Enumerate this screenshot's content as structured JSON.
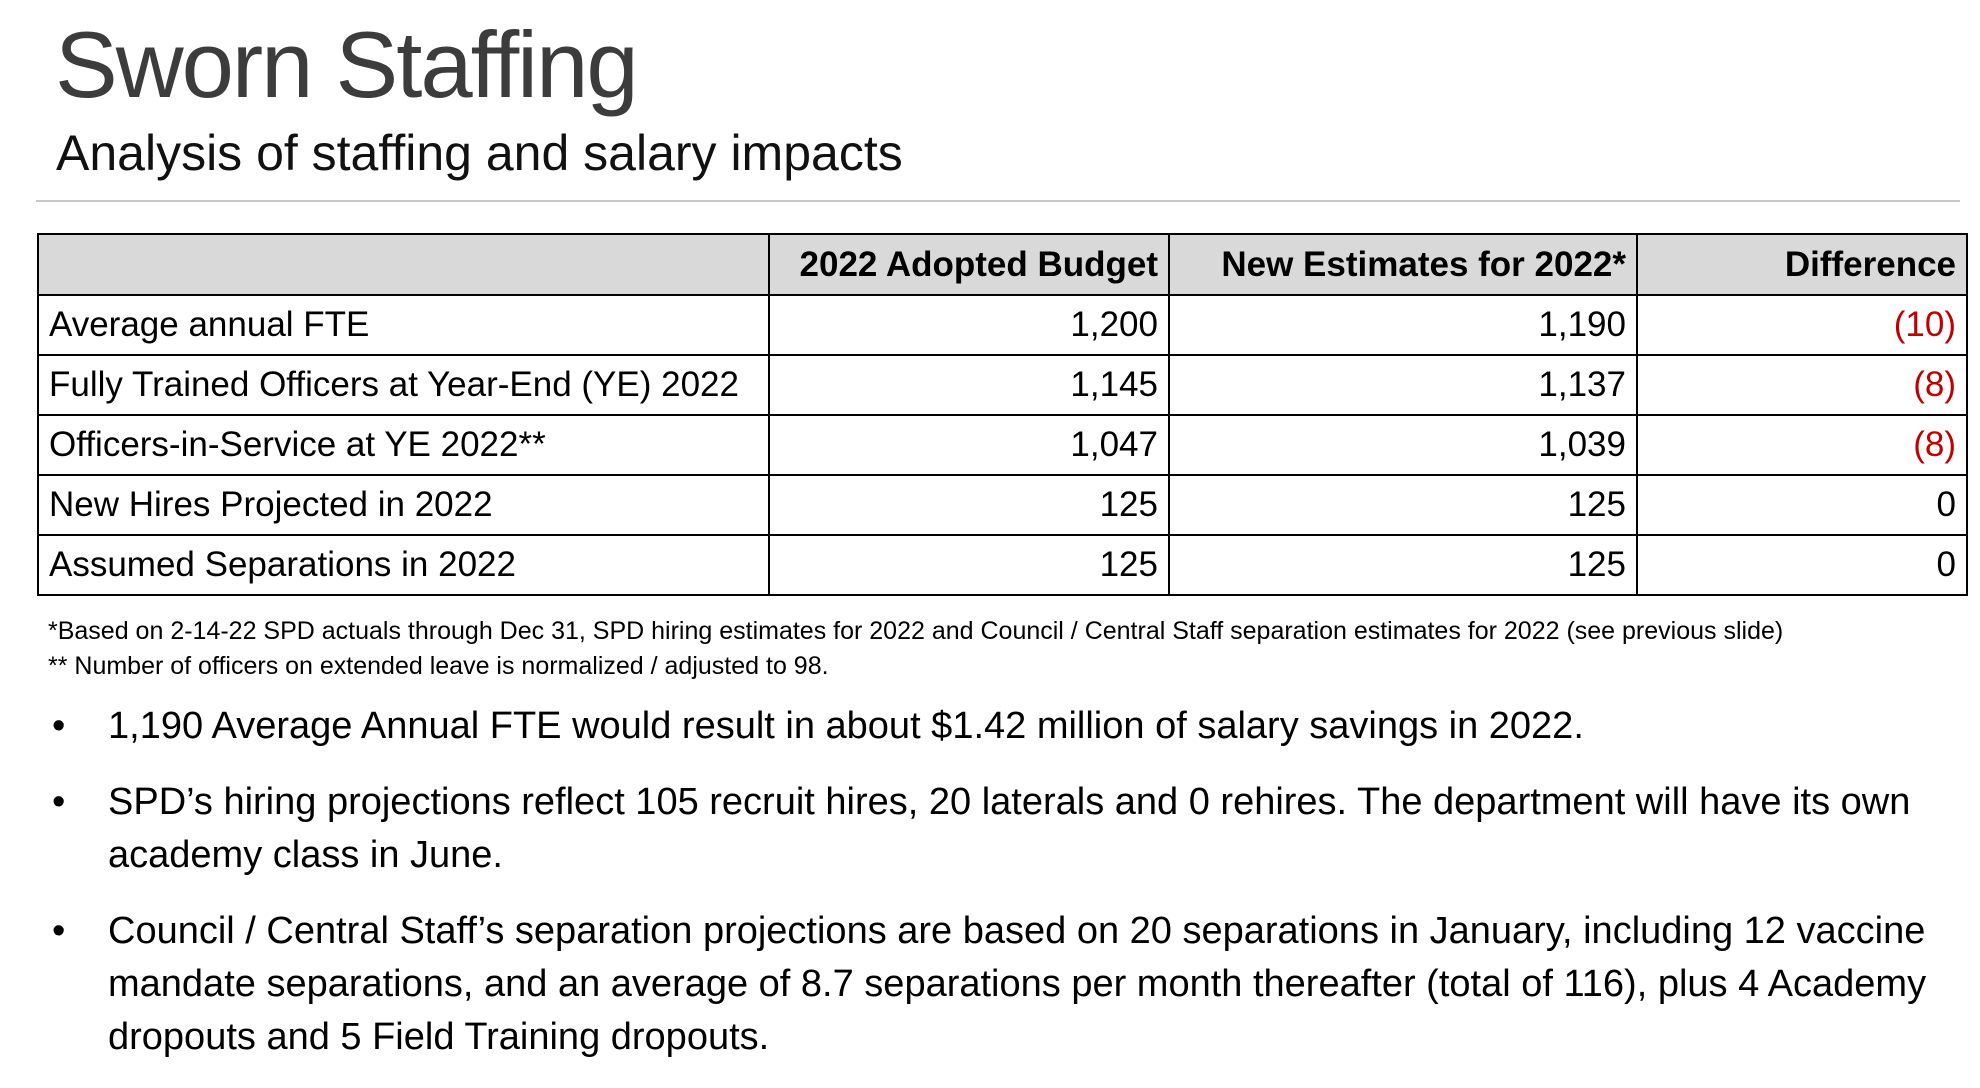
{
  "slide": {
    "title": "Sworn Staffing",
    "subtitle": "Analysis of staffing and salary impacts"
  },
  "table": {
    "headers": [
      "",
      "2022 Adopted Budget",
      "New Estimates for 2022*",
      "Difference"
    ],
    "rows": [
      {
        "label": "Average annual FTE",
        "adopted": "1,200",
        "estimate": "1,190",
        "difference": "(10)"
      },
      {
        "label": "Fully Trained Officers at Year-End (YE) 2022",
        "adopted": "1,145",
        "estimate": "1,137",
        "difference": "(8)"
      },
      {
        "label": "Officers-in-Service at YE 2022**",
        "adopted": "1,047",
        "estimate": "1,039",
        "difference": "(8)"
      },
      {
        "label": "New Hires Projected in 2022",
        "adopted": "125",
        "estimate": "125",
        "difference": "0"
      },
      {
        "label": "Assumed Separations in 2022",
        "adopted": "125",
        "estimate": "125",
        "difference": "0"
      }
    ]
  },
  "colors": {
    "negative": "#c00000",
    "header_fill": "#d9d9d9",
    "title": "#3c3c3c"
  },
  "footnotes": [
    "*Based on 2-14-22 SPD actuals through Dec 31, SPD hiring estimates for 2022 and Council / Central Staff separation estimates for 2022 (see previous slide)",
    "** Number of officers on extended leave is normalized / adjusted to 98."
  ],
  "bullets": [
    "1,190 Average Annual FTE would result in about $1.42 million of salary savings in 2022.",
    "SPD’s hiring projections reflect 105 recruit hires, 20 laterals and 0 rehires. The department will have its own academy class in June.",
    "Council / Central Staff’s separation projections are based on 20 separations in January, including 12 vaccine mandate separations, and an average of 8.7 separations per month thereafter (total of 116), plus 4 Academy dropouts and 5 Field Training dropouts."
  ],
  "bullet_symbol": "•"
}
